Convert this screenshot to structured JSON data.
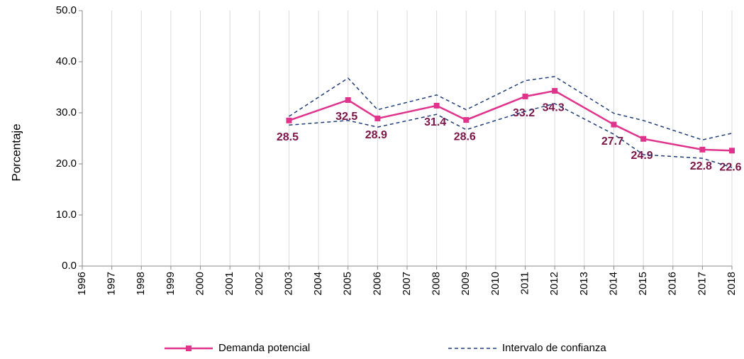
{
  "chart_data": {
    "type": "line",
    "y_label": "Porcentaje",
    "xlim": [
      1996,
      2018
    ],
    "xticks": [
      1996,
      1997,
      1998,
      1999,
      2000,
      2001,
      2002,
      2003,
      2004,
      2005,
      2006,
      2007,
      2008,
      2009,
      2010,
      2011,
      2012,
      2013,
      2014,
      2015,
      2016,
      2017,
      2018
    ],
    "ylim": [
      0,
      50
    ],
    "yticks": [
      {
        "value": 0,
        "label": "0.0"
      },
      {
        "value": 10,
        "label": "10.0"
      },
      {
        "value": 20,
        "label": "20.0"
      },
      {
        "value": 30,
        "label": "30.0"
      },
      {
        "value": 40,
        "label": "40.0"
      },
      {
        "value": 50,
        "label": "50.0"
      }
    ],
    "grid": "x",
    "x": [
      2003,
      2005,
      2006,
      2008,
      2009,
      2011,
      2012,
      2014,
      2015,
      2017,
      2018
    ],
    "series": [
      {
        "name": "Demanda potencial",
        "color": "#e0338c",
        "label_color": "#7b1548",
        "values": [
          28.5,
          32.5,
          28.9,
          31.4,
          28.6,
          33.2,
          34.3,
          27.7,
          24.9,
          22.8,
          22.6
        ]
      },
      {
        "name": "Intervalo de confianza",
        "color": "#1f3d7a",
        "dashed": true,
        "upper": [
          29.3,
          36.8,
          30.6,
          33.5,
          30.6,
          36.3,
          37.1,
          29.9,
          28.5,
          24.7,
          26.0
        ],
        "lower": [
          27.6,
          28.5,
          27.2,
          29.7,
          26.7,
          30.3,
          31.8,
          25.8,
          21.8,
          21.1,
          19.3
        ]
      }
    ]
  }
}
